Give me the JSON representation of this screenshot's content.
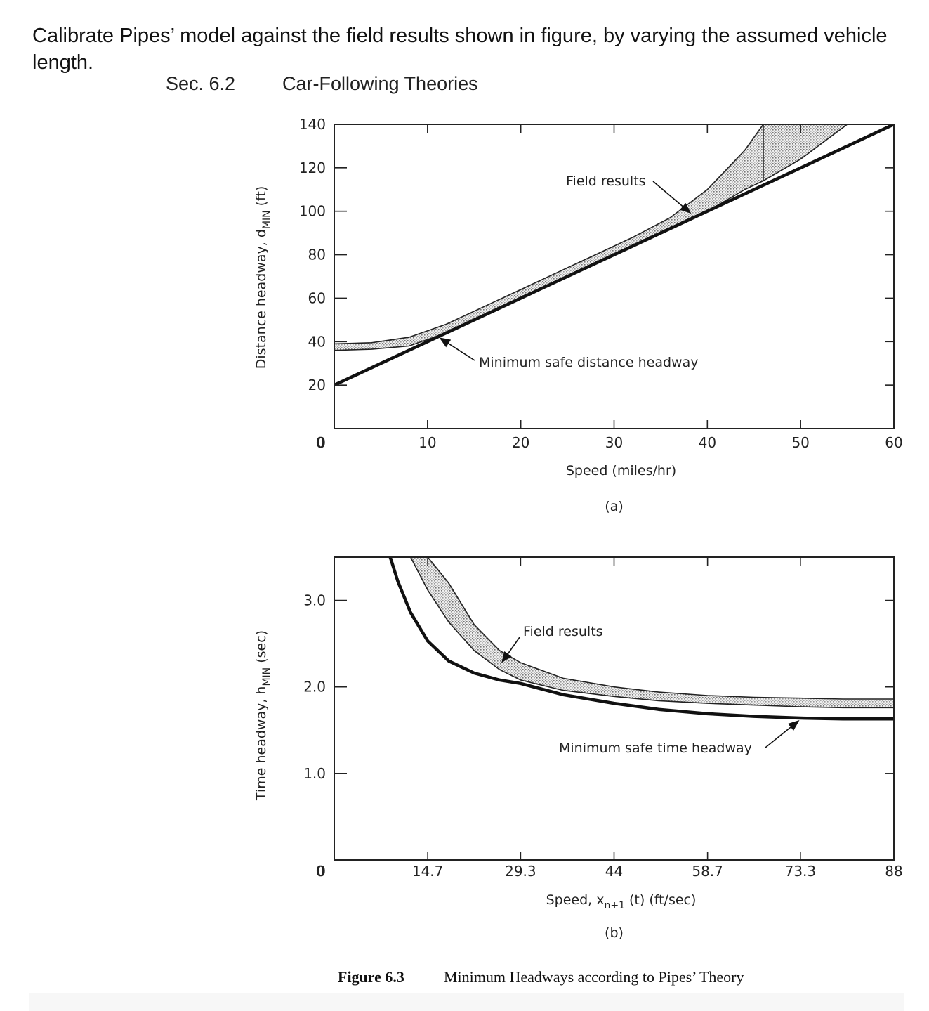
{
  "question": "Calibrate Pipes’ model against the field results shown in figure, by varying the assumed vehicle length.",
  "header": {
    "section": "Sec. 6.2",
    "title": "Car-Following Theories"
  },
  "caption": {
    "number": "Figure 6.3",
    "text": "Minimum Headways according to Pipes’ Theory"
  },
  "chart_data": [
    {
      "type": "line",
      "panel_label": "(a)",
      "xlabel": "Speed (miles/hr)",
      "ylabel_prefix": "Distance headway, d",
      "ylabel_sub": "MIN",
      "ylabel_suffix": " (ft)",
      "xlim": [
        0,
        60
      ],
      "ylim": [
        0,
        140
      ],
      "xticks": [
        0,
        10,
        20,
        30,
        40,
        50,
        60
      ],
      "yticks": [
        0,
        20,
        40,
        60,
        80,
        100,
        120,
        140
      ],
      "xtick_labels": [
        "0",
        "10",
        "20",
        "30",
        "40",
        "50",
        "60"
      ],
      "ytick_labels": [
        "0",
        "20",
        "40",
        "60",
        "80",
        "100",
        "120",
        "140"
      ],
      "annotations": [
        "Field results",
        "Minimum safe distance headway"
      ],
      "series": [
        {
          "name": "Minimum safe distance headway",
          "x": [
            0,
            10,
            20,
            30,
            40,
            50,
            60
          ],
          "y": [
            20,
            40,
            60,
            80,
            100,
            120,
            140
          ]
        },
        {
          "name": "Field results",
          "kind": "band",
          "x": [
            0,
            4,
            8,
            12,
            16,
            20,
            24,
            28,
            32,
            36,
            40,
            44,
            46
          ],
          "lower": [
            36,
            36.5,
            38,
            44,
            52,
            60,
            68,
            76,
            84,
            92,
            100,
            110,
            114
          ],
          "upper": [
            39,
            39.5,
            42,
            48,
            56,
            64,
            72,
            80,
            88,
            97,
            110,
            128,
            140
          ]
        },
        {
          "name": "Field results (upper branch)",
          "kind": "band",
          "x": [
            46,
            50,
            55
          ],
          "lower": [
            114,
            124,
            140
          ],
          "upper": [
            140,
            140,
            140
          ]
        }
      ]
    },
    {
      "type": "line",
      "panel_label": "(b)",
      "xlabel_prefix": "Speed, x",
      "xlabel_sub": "n+1",
      "xlabel_suffix": " (t) (ft/sec)",
      "ylabel_prefix": "Time headway, h",
      "ylabel_sub": "MIN",
      "ylabel_suffix": " (sec)",
      "xlim": [
        0,
        88
      ],
      "ylim": [
        0,
        3.5
      ],
      "xticks": [
        0,
        14.7,
        29.3,
        44,
        58.7,
        73.3,
        88
      ],
      "yticks": [
        0,
        1.0,
        2.0,
        3.0
      ],
      "xtick_labels": [
        "0",
        "14.7",
        "29.3",
        "44",
        "58.7",
        "73.3",
        "88"
      ],
      "ytick_labels": [
        "0",
        "1.0",
        "2.0",
        "3.0"
      ],
      "annotations": [
        "Field results",
        "Minimum safe time headway"
      ],
      "series": [
        {
          "name": "Minimum safe time headway",
          "x": [
            8.8,
            10,
            12,
            14.7,
            18,
            22,
            26,
            29.3,
            36,
            44,
            51,
            58.7,
            66,
            73.3,
            80,
            88
          ],
          "y": [
            3.5,
            3.22,
            2.86,
            2.53,
            2.3,
            2.16,
            2.08,
            2.04,
            1.91,
            1.81,
            1.74,
            1.69,
            1.66,
            1.64,
            1.63,
            1.63
          ]
        },
        {
          "name": "Field results",
          "kind": "band",
          "x": [
            12,
            14.7,
            18,
            22,
            26,
            29.3,
            36,
            44,
            51,
            58.7,
            66,
            73.3,
            80,
            88
          ],
          "lower": [
            3.5,
            3.12,
            2.75,
            2.42,
            2.2,
            2.08,
            1.96,
            1.89,
            1.84,
            1.81,
            1.79,
            1.77,
            1.76,
            1.76
          ],
          "upper": [
            3.5,
            3.5,
            3.2,
            2.72,
            2.42,
            2.28,
            2.1,
            2.0,
            1.94,
            1.9,
            1.88,
            1.87,
            1.86,
            1.86
          ]
        }
      ]
    }
  ]
}
